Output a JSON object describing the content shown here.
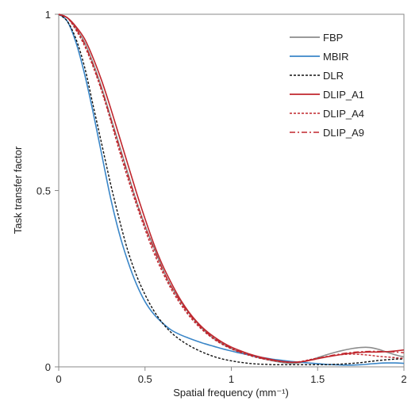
{
  "chart_data": {
    "type": "line",
    "title": "",
    "xlabel": "Spatial frequency (mm⁻¹)",
    "ylabel": "Task transfer factor",
    "xlim": [
      0,
      2
    ],
    "ylim": [
      0,
      1
    ],
    "xticks": [
      {
        "value": 0,
        "label": "0"
      },
      {
        "value": 0.5,
        "label": "0.5"
      },
      {
        "value": 1,
        "label": "1"
      },
      {
        "value": 1.5,
        "label": "1.5"
      },
      {
        "value": 2,
        "label": "2"
      }
    ],
    "yticks": [
      {
        "value": 0,
        "label": "0"
      },
      {
        "value": 0.5,
        "label": "0.5"
      },
      {
        "value": 1,
        "label": "1"
      }
    ],
    "grid": false,
    "legend_position": "top-right",
    "x": [
      0,
      0.05,
      0.1,
      0.15,
      0.2,
      0.25,
      0.3,
      0.35,
      0.4,
      0.45,
      0.5,
      0.55,
      0.6,
      0.65,
      0.7,
      0.75,
      0.8,
      0.85,
      0.9,
      0.95,
      1.0,
      1.05,
      1.1,
      1.15,
      1.2,
      1.25,
      1.3,
      1.35,
      1.4,
      1.45,
      1.5,
      1.55,
      1.6,
      1.65,
      1.7,
      1.75,
      1.8,
      1.85,
      1.9,
      1.95,
      2.0
    ],
    "series": [
      {
        "name": "FBP",
        "color": "#8c8c8c",
        "dash": "solid",
        "values": [
          1.0,
          0.99,
          0.96,
          0.92,
          0.86,
          0.79,
          0.71,
          0.63,
          0.55,
          0.47,
          0.4,
          0.34,
          0.28,
          0.23,
          0.19,
          0.155,
          0.125,
          0.1,
          0.08,
          0.065,
          0.052,
          0.042,
          0.034,
          0.027,
          0.021,
          0.016,
          0.012,
          0.01,
          0.012,
          0.018,
          0.026,
          0.034,
          0.041,
          0.047,
          0.052,
          0.055,
          0.055,
          0.05,
          0.042,
          0.034,
          0.028
        ]
      },
      {
        "name": "MBIR",
        "color": "#3a86c8",
        "dash": "solid",
        "values": [
          1.0,
          0.98,
          0.92,
          0.83,
          0.72,
          0.6,
          0.48,
          0.38,
          0.3,
          0.235,
          0.185,
          0.15,
          0.125,
          0.105,
          0.092,
          0.082,
          0.073,
          0.065,
          0.058,
          0.051,
          0.045,
          0.039,
          0.034,
          0.029,
          0.025,
          0.021,
          0.018,
          0.015,
          0.013,
          0.011,
          0.009,
          0.007,
          0.006,
          0.005,
          0.005,
          0.006,
          0.008,
          0.01,
          0.011,
          0.011,
          0.01
        ]
      },
      {
        "name": "DLR",
        "color": "#111111",
        "dash": "dotted",
        "values": [
          1.0,
          0.98,
          0.93,
          0.85,
          0.74,
          0.63,
          0.52,
          0.42,
          0.33,
          0.26,
          0.205,
          0.16,
          0.125,
          0.098,
          0.078,
          0.062,
          0.049,
          0.038,
          0.029,
          0.022,
          0.017,
          0.013,
          0.01,
          0.008,
          0.007,
          0.006,
          0.006,
          0.006,
          0.006,
          0.006,
          0.006,
          0.006,
          0.007,
          0.008,
          0.01,
          0.012,
          0.015,
          0.018,
          0.02,
          0.022,
          0.022
        ]
      },
      {
        "name": "DLIP_A1",
        "color": "#c0262d",
        "dash": "solid",
        "values": [
          1.0,
          0.99,
          0.965,
          0.93,
          0.875,
          0.81,
          0.735,
          0.655,
          0.575,
          0.495,
          0.42,
          0.35,
          0.29,
          0.24,
          0.195,
          0.158,
          0.128,
          0.104,
          0.085,
          0.069,
          0.056,
          0.046,
          0.037,
          0.03,
          0.024,
          0.019,
          0.015,
          0.013,
          0.014,
          0.018,
          0.023,
          0.028,
          0.032,
          0.036,
          0.039,
          0.041,
          0.042,
          0.042,
          0.043,
          0.045,
          0.048
        ]
      },
      {
        "name": "DLIP_A4",
        "color": "#c0262d",
        "dash": "dotted",
        "values": [
          1.0,
          0.99,
          0.955,
          0.91,
          0.85,
          0.78,
          0.7,
          0.615,
          0.535,
          0.46,
          0.39,
          0.325,
          0.27,
          0.222,
          0.182,
          0.148,
          0.12,
          0.097,
          0.078,
          0.063,
          0.051,
          0.041,
          0.033,
          0.026,
          0.021,
          0.017,
          0.014,
          0.013,
          0.015,
          0.02,
          0.025,
          0.029,
          0.033,
          0.035,
          0.036,
          0.035,
          0.033,
          0.03,
          0.028,
          0.026,
          0.024
        ]
      },
      {
        "name": "DLIP_A9",
        "color": "#c0262d",
        "dash": "dashdot",
        "values": [
          1.0,
          0.99,
          0.96,
          0.915,
          0.855,
          0.785,
          0.705,
          0.625,
          0.545,
          0.47,
          0.4,
          0.335,
          0.278,
          0.229,
          0.188,
          0.153,
          0.124,
          0.1,
          0.081,
          0.066,
          0.053,
          0.043,
          0.035,
          0.028,
          0.022,
          0.018,
          0.015,
          0.013,
          0.014,
          0.019,
          0.024,
          0.029,
          0.034,
          0.038,
          0.041,
          0.043,
          0.044,
          0.044,
          0.043,
          0.042,
          0.04
        ]
      }
    ]
  }
}
